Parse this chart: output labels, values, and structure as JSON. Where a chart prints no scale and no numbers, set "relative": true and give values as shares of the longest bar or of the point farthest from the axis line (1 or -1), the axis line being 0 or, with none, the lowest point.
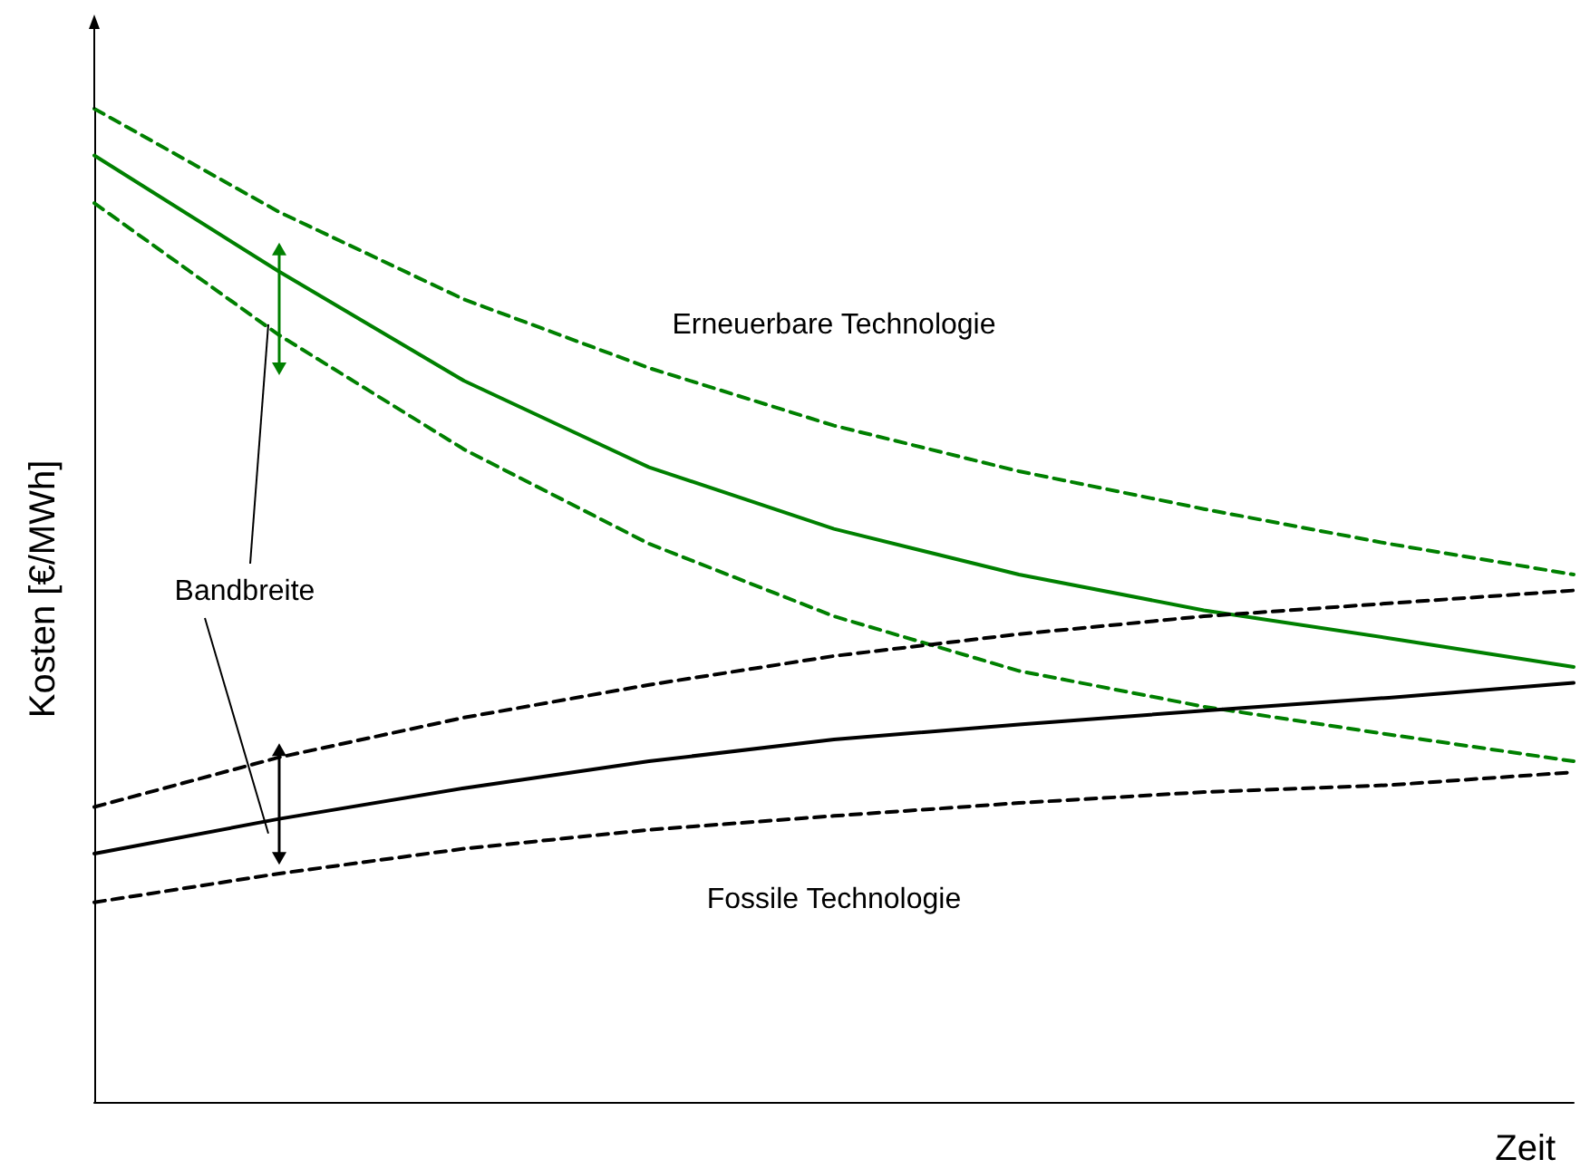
{
  "chart_data": {
    "type": "line",
    "relative": true,
    "xlabel": "Zeit",
    "ylabel": "Kosten [€/MWh]",
    "categories": [
      null,
      null,
      null,
      null,
      null,
      null,
      null,
      null,
      null
    ],
    "marker": "none",
    "grid": false,
    "series": [
      {
        "color": "#008000",
        "line_style": "solid",
        "values": [
          0.953,
          0.836,
          0.726,
          0.639,
          0.577,
          0.531,
          0.495,
          0.467,
          0.438
        ]
      },
      {
        "color": "#008000",
        "line_style": "dashed",
        "values": [
          1,
          0.896,
          0.808,
          0.739,
          0.681,
          0.635,
          0.597,
          0.562,
          0.531
        ]
      },
      {
        "color": "#008000",
        "line_style": "dashed",
        "values": [
          0.905,
          0.772,
          0.657,
          0.562,
          0.489,
          0.434,
          0.398,
          0.37,
          0.343
        ]
      },
      {
        "color": "#000000",
        "line_style": "solid",
        "values": [
          0.25,
          0.285,
          0.316,
          0.343,
          0.365,
          0.38,
          0.394,
          0.407,
          0.422
        ]
      },
      {
        "color": "#000000",
        "line_style": "dashed",
        "values": [
          0.297,
          0.347,
          0.387,
          0.42,
          0.449,
          0.471,
          0.489,
          0.502,
          0.515
        ]
      },
      {
        "color": "#000000",
        "line_style": "dashed",
        "values": [
          0.201,
          0.23,
          0.255,
          0.274,
          0.288,
          0.301,
          0.312,
          0.319,
          0.332
        ]
      }
    ],
    "annotations": [
      "Erneuerbare Technologie",
      "Fossile Technologie",
      "Bandbreite"
    ]
  }
}
